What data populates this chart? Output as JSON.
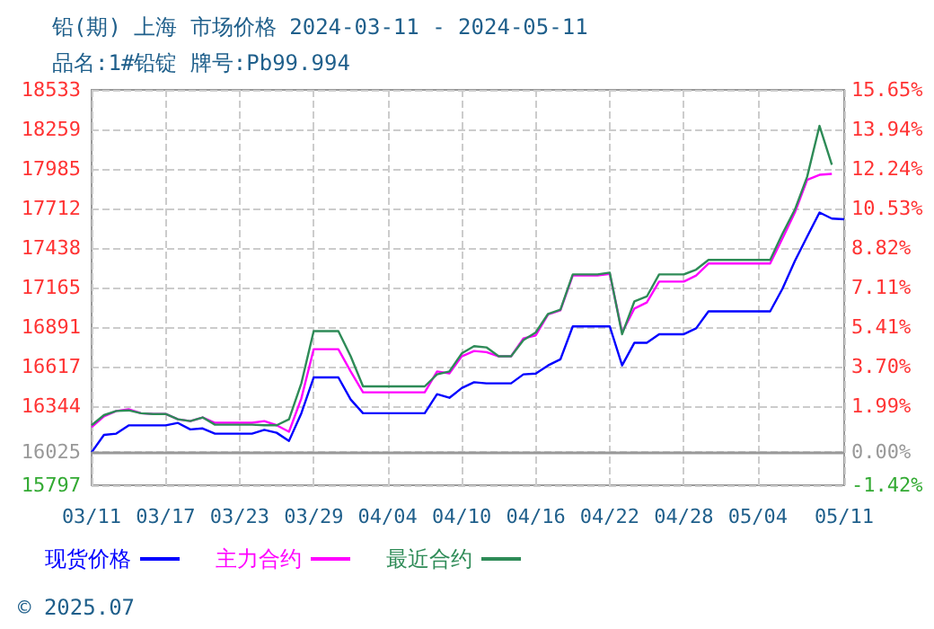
{
  "chart_data": {
    "type": "line",
    "title": "铅(期) 上海 市场价格 2024-03-11 - 2024-05-11",
    "subtitle": "品名:1#铅锭 牌号:Pb99.994",
    "annotations": [
      "© 2025.07"
    ],
    "x": [
      "2024-03-11",
      "2024-03-12",
      "2024-03-13",
      "2024-03-14",
      "2024-03-15",
      "2024-03-16",
      "2024-03-17",
      "2024-03-18",
      "2024-03-19",
      "2024-03-20",
      "2024-03-21",
      "2024-03-22",
      "2024-03-23",
      "2024-03-24",
      "2024-03-25",
      "2024-03-26",
      "2024-03-27",
      "2024-03-28",
      "2024-03-29",
      "2024-03-30",
      "2024-03-31",
      "2024-04-01",
      "2024-04-02",
      "2024-04-03",
      "2024-04-04",
      "2024-04-05",
      "2024-04-06",
      "2024-04-07",
      "2024-04-08",
      "2024-04-09",
      "2024-04-10",
      "2024-04-11",
      "2024-04-12",
      "2024-04-13",
      "2024-04-14",
      "2024-04-15",
      "2024-04-16",
      "2024-04-17",
      "2024-04-18",
      "2024-04-19",
      "2024-04-20",
      "2024-04-21",
      "2024-04-22",
      "2024-04-23",
      "2024-04-24",
      "2024-04-25",
      "2024-04-26",
      "2024-04-27",
      "2024-04-28",
      "2024-04-29",
      "2024-04-30",
      "2024-05-01",
      "2024-05-02",
      "2024-05-03",
      "2024-05-04",
      "2024-05-05",
      "2024-05-06",
      "2024-05-07",
      "2024-05-08",
      "2024-05-09",
      "2024-05-10",
      "2024-05-11"
    ],
    "series": [
      {
        "name": "现货价格",
        "color": "#0000ff",
        "values": [
          16025,
          16145,
          16154,
          16211,
          16211,
          16211,
          16211,
          16228,
          16183,
          16190,
          16154,
          16154,
          16154,
          16154,
          16180,
          16160,
          16104,
          16295,
          16543,
          16543,
          16543,
          16390,
          16295,
          16295,
          16295,
          16295,
          16295,
          16295,
          16427,
          16402,
          16469,
          16510,
          16502,
          16502,
          16502,
          16564,
          16570,
          16626,
          16668,
          16896,
          16896,
          16896,
          16896,
          16626,
          16783,
          16783,
          16842,
          16842,
          16842,
          16883,
          17000,
          17000,
          17000,
          17000,
          17000,
          17000,
          17157,
          17348,
          17518,
          17684,
          17642,
          17638
        ]
      },
      {
        "name": "主力合约",
        "color": "#ff00ff",
        "values": [
          16199,
          16274,
          16311,
          16323,
          16295,
          16290,
          16290,
          16253,
          16241,
          16266,
          16229,
          16229,
          16229,
          16229,
          16241,
          16212,
          16167,
          16398,
          16738,
          16738,
          16738,
          16584,
          16440,
          16440,
          16440,
          16440,
          16440,
          16440,
          16584,
          16571,
          16689,
          16726,
          16718,
          16689,
          16689,
          16813,
          16834,
          16979,
          17007,
          17248,
          17248,
          17248,
          17260,
          16854,
          17020,
          17062,
          17206,
          17206,
          17206,
          17248,
          17331,
          17331,
          17331,
          17331,
          17331,
          17331,
          17505,
          17684,
          17911,
          17945,
          17952,
          null
        ]
      },
      {
        "name": "最近合约",
        "color": "#2e8b57",
        "values": [
          16212,
          16282,
          16311,
          16315,
          16295,
          16290,
          16290,
          16253,
          16241,
          16266,
          16216,
          16216,
          16216,
          16216,
          16212,
          16212,
          16253,
          16502,
          16863,
          16863,
          16863,
          16689,
          16481,
          16481,
          16481,
          16481,
          16481,
          16481,
          16564,
          16584,
          16709,
          16759,
          16751,
          16689,
          16689,
          16801,
          16854,
          16983,
          17012,
          17256,
          17256,
          17256,
          17268,
          16842,
          17070,
          17103,
          17256,
          17256,
          17256,
          17289,
          17356,
          17356,
          17356,
          17356,
          17356,
          17356,
          17538,
          17704,
          17932,
          18284,
          18014,
          null
        ]
      }
    ],
    "xlim": [
      "2024-03-11",
      "2024-05-11"
    ],
    "xticks": [
      {
        "value": "2024-03-11",
        "label": "03/11"
      },
      {
        "value": "2024-03-17",
        "label": "03/17"
      },
      {
        "value": "2024-03-23",
        "label": "03/23"
      },
      {
        "value": "2024-03-29",
        "label": "03/29"
      },
      {
        "value": "2024-04-04",
        "label": "04/04"
      },
      {
        "value": "2024-04-10",
        "label": "04/10"
      },
      {
        "value": "2024-04-16",
        "label": "04/16"
      },
      {
        "value": "2024-04-22",
        "label": "04/22"
      },
      {
        "value": "2024-04-28",
        "label": "04/28"
      },
      {
        "value": "2024-05-04",
        "label": "05/04"
      },
      {
        "value": "2024-05-11",
        "label": "05/11"
      }
    ],
    "ylim": [
      15797,
      18533
    ],
    "yticks": [
      15797,
      16025,
      16344,
      16617,
      16891,
      17165,
      17438,
      17712,
      17985,
      18259,
      18533
    ],
    "y2lim": [
      -1.42,
      15.65
    ],
    "y2ticks": [
      {
        "value": -1.42,
        "label": "-1.42%"
      },
      {
        "value": 0,
        "label": "0.00%"
      },
      {
        "value": 1.99,
        "label": "1.99%"
      },
      {
        "value": 3.7,
        "label": "3.70%"
      },
      {
        "value": 5.41,
        "label": "5.41%"
      },
      {
        "value": 7.11,
        "label": "7.11%"
      },
      {
        "value": 8.82,
        "label": "8.82%"
      },
      {
        "value": 10.53,
        "label": "10.53%"
      },
      {
        "value": 12.24,
        "label": "12.24%"
      },
      {
        "value": 13.94,
        "label": "13.94%"
      },
      {
        "value": 15.65,
        "label": "15.65%"
      }
    ],
    "ref_lines": [
      {
        "axis": "y",
        "value": 16025,
        "color": "#999999",
        "line_style": "solid"
      }
    ],
    "grid": true,
    "legend": "bottom left",
    "marker": "none",
    "line_style": "solid"
  }
}
